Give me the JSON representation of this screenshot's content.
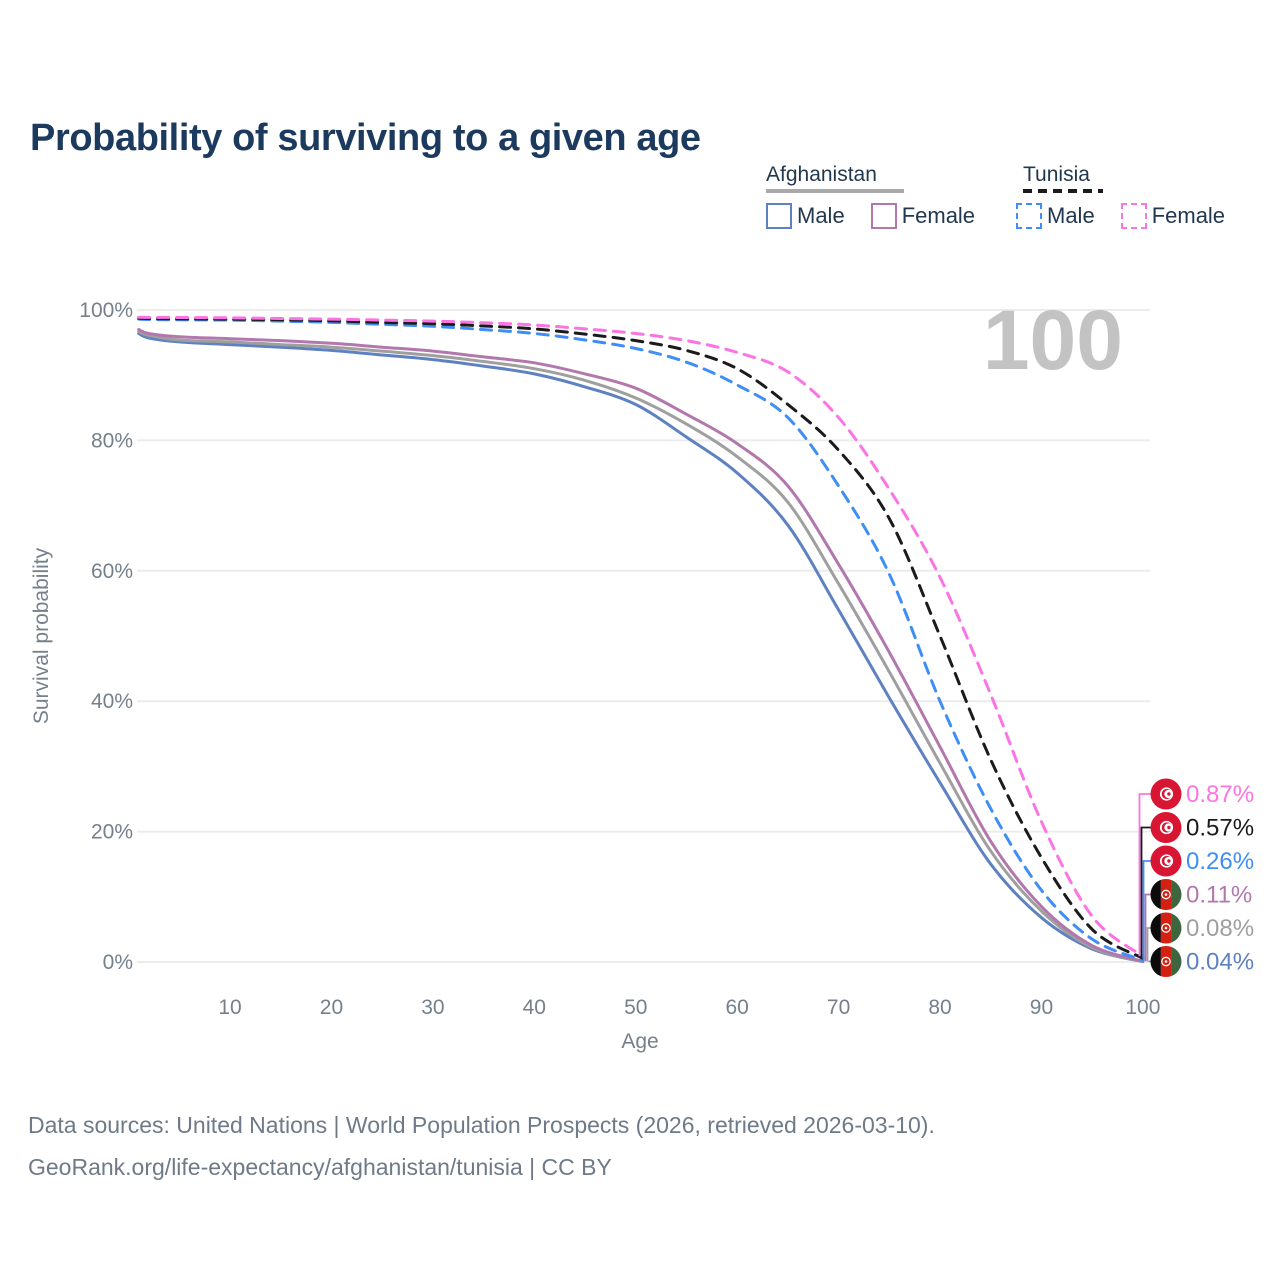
{
  "title": "Probability of surviving to a given age",
  "watermark": "100",
  "legend": {
    "groups": [
      {
        "label": "Afghanistan",
        "underline_style": "solid",
        "underline_color": "#a9a9a9",
        "items": [
          {
            "label": "Male",
            "color": "#5e81c2",
            "dashed": false
          },
          {
            "label": "Female",
            "color": "#b278ae",
            "dashed": false
          }
        ]
      },
      {
        "label": "Tunisia",
        "underline_style": "dashed",
        "underline_color": "#1b1b1b",
        "items": [
          {
            "label": "Male",
            "color": "#3f8ef5",
            "dashed": true
          },
          {
            "label": "Female",
            "color": "#fb74e4",
            "dashed": true
          }
        ]
      }
    ]
  },
  "chart_data": {
    "type": "line",
    "title": "Probability of surviving to a given age",
    "xlabel": "Age",
    "ylabel": "Survival probability",
    "x_ticks": [
      10,
      20,
      30,
      40,
      50,
      60,
      70,
      80,
      90,
      100
    ],
    "y_ticks": [
      {
        "value": 0,
        "label": "0%"
      },
      {
        "value": 20,
        "label": "20%"
      },
      {
        "value": 40,
        "label": "40%"
      },
      {
        "value": 60,
        "label": "60%"
      },
      {
        "value": 80,
        "label": "80%"
      },
      {
        "value": 100,
        "label": "100%"
      }
    ],
    "xlim": [
      0,
      100
    ],
    "ylim": [
      0,
      100
    ],
    "grid": true,
    "legend_position": "top-right",
    "ages": [
      1,
      2,
      5,
      10,
      15,
      20,
      25,
      30,
      35,
      40,
      45,
      50,
      55,
      60,
      65,
      70,
      75,
      80,
      85,
      90,
      95,
      100
    ],
    "series": [
      {
        "id": "tunisia-female",
        "country": "Tunisia",
        "sex": "Female",
        "color": "#fb74e4",
        "dashed": true,
        "flag": "tunisia",
        "end_label": "0.87%",
        "values": [
          98.9,
          98.87,
          98.85,
          98.8,
          98.7,
          98.6,
          98.45,
          98.3,
          98.05,
          97.7,
          97.1,
          96.4,
          95.3,
          93.5,
          90.5,
          83.5,
          72.5,
          59,
          41,
          21.5,
          7,
          0.87
        ]
      },
      {
        "id": "tunisia-all",
        "country": "Tunisia",
        "sex": "Both",
        "color": "#1b1b1b",
        "dashed": true,
        "flag": "tunisia",
        "end_label": "0.57%",
        "values": [
          98.75,
          98.7,
          98.65,
          98.6,
          98.5,
          98.35,
          98.1,
          97.9,
          97.55,
          97.1,
          96.3,
          95.3,
          93.8,
          91,
          85.5,
          78.5,
          68,
          50,
          31,
          16,
          5,
          0.57
        ]
      },
      {
        "id": "tunisia-male",
        "country": "Tunisia",
        "sex": "Male",
        "color": "#3f8ef5",
        "dashed": true,
        "flag": "tunisia",
        "end_label": "0.26%",
        "values": [
          98.6,
          98.55,
          98.5,
          98.45,
          98.3,
          98.1,
          97.8,
          97.5,
          97.0,
          96.4,
          95.4,
          94.1,
          92,
          88.5,
          83.5,
          73,
          59.5,
          40,
          23.5,
          11,
          3.5,
          0.26
        ]
      },
      {
        "id": "afghanistan-female",
        "country": "Afghanistan",
        "sex": "Female",
        "color": "#b278ae",
        "dashed": false,
        "flag": "afghanistan",
        "end_label": "0.11%",
        "values": [
          97.0,
          96.4,
          95.9,
          95.6,
          95.3,
          94.9,
          94.3,
          93.7,
          92.8,
          91.9,
          90.2,
          88.0,
          84,
          79.5,
          73,
          61,
          47.5,
          33,
          18.5,
          8.5,
          2.5,
          0.11
        ]
      },
      {
        "id": "afghanistan-all",
        "country": "Afghanistan",
        "sex": "Both",
        "color": "#9f9f9f",
        "dashed": false,
        "flag": "afghanistan",
        "end_label": "0.08%",
        "values": [
          96.7,
          96.1,
          95.4,
          95.1,
          94.7,
          94.3,
          93.7,
          93.0,
          92.1,
          91.0,
          89.2,
          86.5,
          82.5,
          77.5,
          70.5,
          58,
          44.5,
          30.5,
          17,
          7.8,
          2.2,
          0.08
        ]
      },
      {
        "id": "afghanistan-male",
        "country": "Afghanistan",
        "sex": "Male",
        "color": "#5e81c2",
        "dashed": false,
        "flag": "afghanistan",
        "end_label": "0.04%",
        "values": [
          96.4,
          95.7,
          95.1,
          94.7,
          94.3,
          93.8,
          93.1,
          92.4,
          91.4,
          90.2,
          88.2,
          85.5,
          80.5,
          75,
          67,
          54,
          40.5,
          27.5,
          15,
          6.8,
          2,
          0.04
        ]
      }
    ]
  },
  "flags": {
    "tunisia": {
      "red": "#d81532",
      "white": "#ffffff"
    },
    "afghanistan": {
      "black": "#0b0b0b",
      "red": "#d32011",
      "green": "#3e663e",
      "white": "#ffffff"
    }
  },
  "colors": {
    "title_text": "#1c3a5e",
    "axis_text": "#75808c",
    "gridline": "#ececec",
    "watermark": "#c3c3c3",
    "footer_text": "#6e7a87"
  },
  "footer": {
    "line1": "Data sources: United Nations | World Population Prospects (2026, retrieved 2026-03-10).",
    "line2": "GeoRank.org/life-expectancy/afghanistan/tunisia | CC BY"
  }
}
